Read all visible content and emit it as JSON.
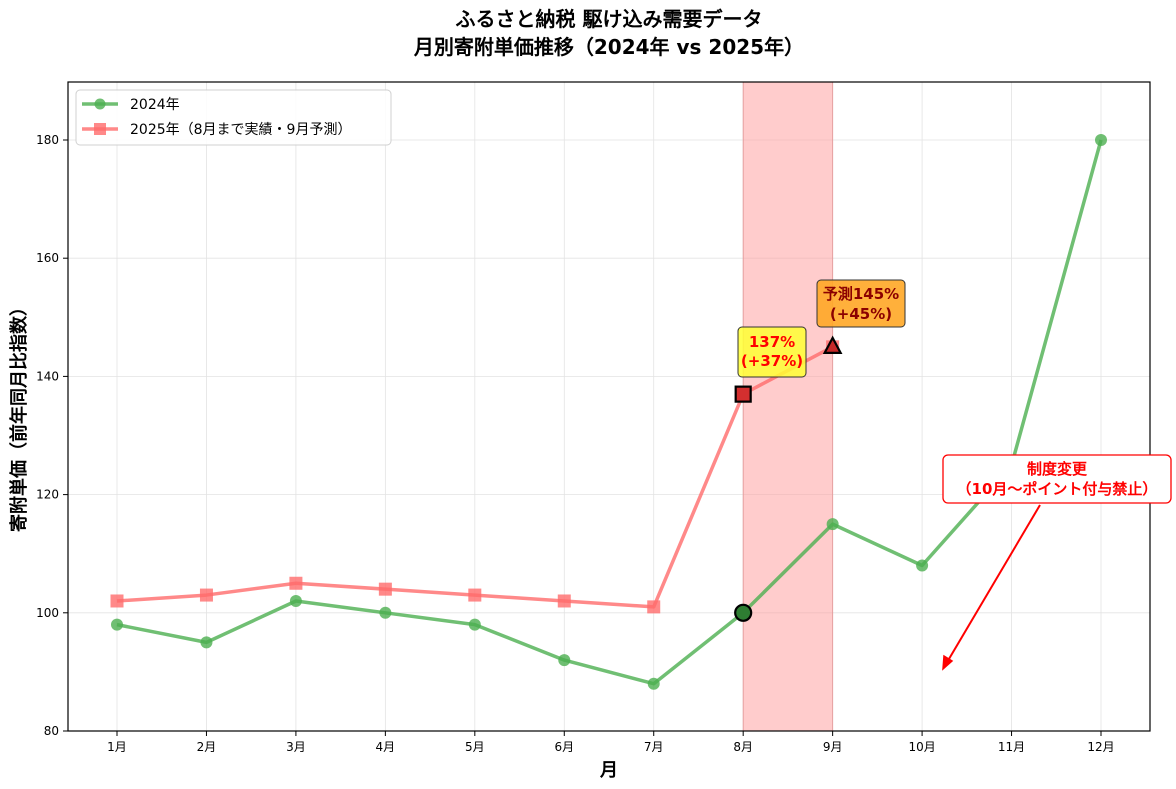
{
  "title_line1": "ふるさと納税 駆け込み需要データ",
  "title_line2": "月別寄附単価推移（2024年 vs 2025年）",
  "chart_data": {
    "type": "line",
    "title": "ふるさと納税 駆け込み需要データ 月別寄附単価推移（2024年 vs 2025年）",
    "xlabel": "月",
    "ylabel": "寄附単価（前年同月比指数）",
    "categories": [
      "1月",
      "2月",
      "3月",
      "4月",
      "5月",
      "6月",
      "7月",
      "8月",
      "9月",
      "10月",
      "11月",
      "12月"
    ],
    "ylim": [
      80,
      190
    ],
    "yticks": [
      80,
      100,
      120,
      140,
      160,
      180
    ],
    "grid": true,
    "legend_position": "upper left",
    "series": [
      {
        "name": "2024年",
        "color": "#4caf50",
        "marker": "circle",
        "values": [
          98,
          95,
          102,
          100,
          98,
          92,
          88,
          100,
          115,
          108,
          125,
          180
        ]
      },
      {
        "name": "2025年（8月まで実績・9月予測）",
        "color": "#ff6b6b",
        "marker": "square",
        "values": [
          102,
          103,
          105,
          104,
          103,
          102,
          101,
          137,
          145,
          null,
          null,
          null
        ]
      }
    ],
    "highlight_span": {
      "from": "8月",
      "to": "9月",
      "color": "#ff9999"
    },
    "annotations": [
      {
        "text": "137%\n(+37%)",
        "x": "8月",
        "y": 137,
        "box_color": "#ffff33",
        "text_color": "#ff0000"
      },
      {
        "text": "予測145%\n(+45%)",
        "x": "9月",
        "y": 145,
        "box_color": "#ffa726",
        "text_color": "#8b0000"
      },
      {
        "text": "制度変更\n（10月～ポイント付与禁止）",
        "arrow_to": {
          "x": 10.2,
          "y": 90
        },
        "box_color": "#ffffff",
        "text_color": "#ff0000"
      }
    ]
  },
  "legend": {
    "items": [
      {
        "label": "2024年"
      },
      {
        "label": "2025年（8月まで実績・9月予測）"
      }
    ]
  },
  "annotations": {
    "a1_line1": "137%",
    "a1_line2": "(+37%)",
    "a2_line1": "予測145%",
    "a2_line2": "(+45%)",
    "a3_line1": "制度変更",
    "a3_line2": "（10月～ポイント付与禁止）"
  }
}
